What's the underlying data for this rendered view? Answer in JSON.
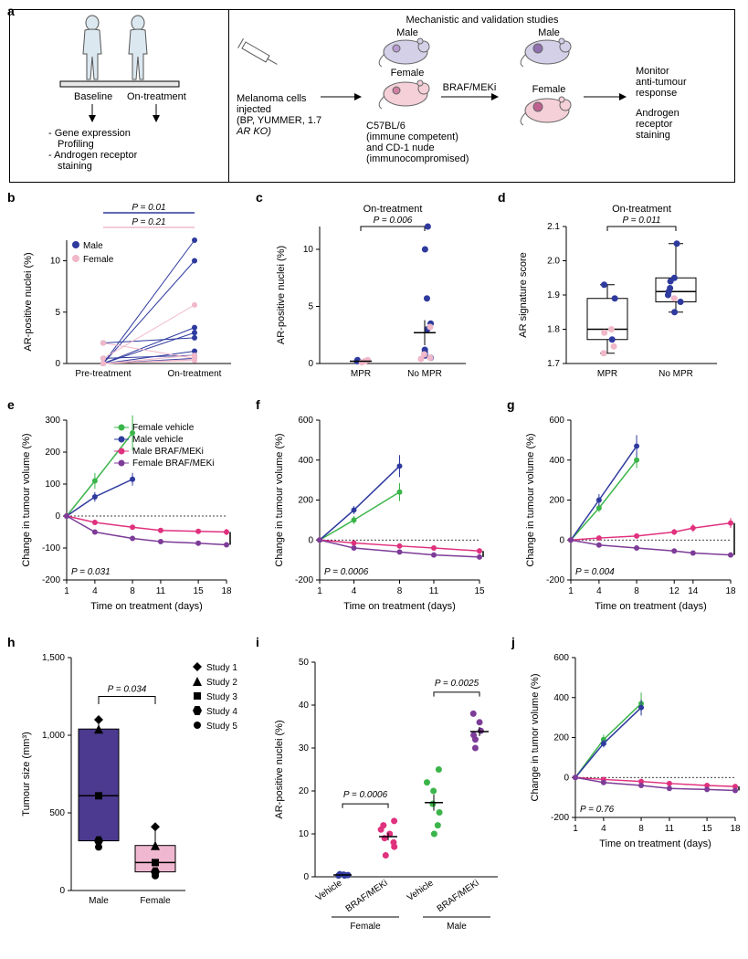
{
  "panel_a": {
    "left": {
      "baseline": "Baseline",
      "ontreatment": "On-treatment",
      "bullets": "- Gene expression\n  Profiling\n- Androgen receptor\n  staining"
    },
    "right": {
      "title": "Mechanistic and validation studies",
      "male": "Male",
      "female": "Female",
      "inject": "Melanoma cells\ninjected\n(BP, YUMMER, 1.7\nAR KO)",
      "strains": "C57BL/6\n(immune competent)\nand CD-1 nude\n(immunocompromised)",
      "treat": "BRAF/MEKi",
      "monitor": "Monitor\nanti-tumour\nresponse\n\nAndrogen\nreceptor\nstaining"
    }
  },
  "colors": {
    "male": "#2e3a9e",
    "female": "#f0b8c8",
    "green": "#3bb54a",
    "magenta": "#e0317e",
    "purple": "#7d3c98",
    "purple_box": "#4b3a8f",
    "pink_box": "#f0b8d0"
  },
  "b": {
    "title": "",
    "ylabel": "AR-positive nuclei (%)",
    "xticks": [
      "Pre-treatment",
      "On-treatment"
    ],
    "ylim": [
      0,
      12
    ],
    "ystep": 5,
    "p_all": "P = 0.01",
    "p_male": "P = 0.21",
    "legend": [
      "Male",
      "Female"
    ],
    "male_lines": [
      [
        0,
        12
      ],
      [
        0,
        10
      ],
      [
        0,
        3.5
      ],
      [
        0,
        3
      ],
      [
        2,
        2.5
      ],
      [
        0,
        0.5
      ],
      [
        0.5,
        0.8
      ],
      [
        0,
        1.2
      ]
    ],
    "female_lines": [
      [
        0.5,
        5.7
      ],
      [
        0,
        0.8
      ],
      [
        2,
        0.5
      ],
      [
        0,
        0.3
      ],
      [
        0,
        0.4
      ]
    ]
  },
  "c": {
    "title": "On-treatment",
    "ylabel": "AR-positive nuclei (%)",
    "xticks": [
      "MPR",
      "No MPR"
    ],
    "ylim": [
      0,
      12
    ],
    "ystep": 5,
    "pval": "P = 0.006",
    "mpr": {
      "male": [
        0.2,
        0.3
      ],
      "female": [
        0.1,
        0.2,
        0.3
      ]
    },
    "no_mpr": {
      "male": [
        12,
        10,
        5.7,
        3.5,
        3,
        1,
        0.7,
        0.5,
        1.2
      ],
      "female": [
        0.5,
        0.8,
        0.4,
        3.2
      ]
    }
  },
  "d": {
    "title": "On-treatment",
    "ylabel": "AR signature score",
    "xticks": [
      "MPR",
      "No MPR"
    ],
    "ylim": [
      1.7,
      2.1
    ],
    "ystep": 0.1,
    "pval": "P = 0.011",
    "mpr_box": {
      "q1": 1.77,
      "med": 1.8,
      "q3": 1.89,
      "lo": 1.73,
      "hi": 1.93
    },
    "no_mpr_box": {
      "q1": 1.88,
      "med": 1.91,
      "q3": 1.95,
      "lo": 1.85,
      "hi": 2.05
    },
    "mpr_pts": {
      "male": [
        1.93,
        1.89,
        1.77
      ],
      "female": [
        1.8,
        1.79,
        1.75,
        1.73
      ]
    },
    "no_mpr_pts": {
      "male": [
        2.05,
        1.95,
        1.94,
        1.92,
        1.91,
        1.9,
        1.88,
        1.85
      ],
      "female": [
        1.89
      ]
    }
  },
  "growth_legend": [
    "Female vehicle",
    "Male vehicle",
    "Male BRAF/MEKi",
    "Female BRAF/MEKi"
  ],
  "growth_colors": [
    "#3bb54a",
    "#2e3a9e",
    "#e0317e",
    "#7d3c98"
  ],
  "e": {
    "ylabel": "Change in tumour volume (%)",
    "xlabel": "Time on treatment (days)",
    "xticks": [
      1,
      4,
      8,
      11,
      15,
      18
    ],
    "ylim": [
      -200,
      300
    ],
    "ystep": 100,
    "pval": "P = 0.031",
    "series": {
      "green": {
        "x": [
          1,
          4,
          8
        ],
        "y": [
          0,
          110,
          260
        ],
        "err": [
          0,
          25,
          55
        ]
      },
      "blue": {
        "x": [
          1,
          4,
          8
        ],
        "y": [
          0,
          60,
          115
        ],
        "err": [
          0,
          15,
          20
        ]
      },
      "magenta": {
        "x": [
          1,
          4,
          8,
          11,
          15,
          18
        ],
        "y": [
          0,
          -20,
          -35,
          -45,
          -48,
          -50
        ],
        "err": [
          0,
          8,
          8,
          8,
          8,
          10
        ]
      },
      "purple": {
        "x": [
          1,
          4,
          8,
          11,
          15,
          18
        ],
        "y": [
          0,
          -50,
          -70,
          -80,
          -85,
          -90
        ],
        "err": [
          0,
          5,
          5,
          5,
          5,
          5
        ]
      }
    }
  },
  "f": {
    "ylabel": "Change in tumour volume (%)",
    "xlabel": "Time on treatment (days)",
    "xticks": [
      1,
      4,
      8,
      11,
      15
    ],
    "ylim": [
      -200,
      600
    ],
    "ystep": 200,
    "pval": "P = 0.0006",
    "series": {
      "green": {
        "x": [
          1,
          4,
          8
        ],
        "y": [
          0,
          100,
          240
        ],
        "err": [
          0,
          20,
          45
        ]
      },
      "blue": {
        "x": [
          1,
          4,
          8
        ],
        "y": [
          0,
          150,
          370
        ],
        "err": [
          0,
          20,
          55
        ]
      },
      "magenta": {
        "x": [
          1,
          4,
          8,
          11,
          15
        ],
        "y": [
          0,
          -15,
          -30,
          -40,
          -55
        ],
        "err": [
          0,
          10,
          10,
          10,
          15
        ]
      },
      "purple": {
        "x": [
          1,
          4,
          8,
          11,
          15
        ],
        "y": [
          0,
          -40,
          -60,
          -75,
          -85
        ],
        "err": [
          0,
          5,
          5,
          5,
          5
        ]
      }
    }
  },
  "g": {
    "ylabel": "Change in tumour volume (%)",
    "xlabel": "Time on treatment (days)",
    "xticks": [
      1,
      4,
      8,
      12,
      14,
      18
    ],
    "ylim": [
      -200,
      600
    ],
    "ystep": 200,
    "pval": "P = 0.004",
    "series": {
      "green": {
        "x": [
          1,
          4,
          8
        ],
        "y": [
          0,
          160,
          400
        ],
        "err": [
          0,
          20,
          40
        ]
      },
      "blue": {
        "x": [
          1,
          4,
          8
        ],
        "y": [
          0,
          200,
          470
        ],
        "err": [
          0,
          30,
          55
        ]
      },
      "magenta": {
        "x": [
          1,
          4,
          8,
          12,
          14,
          18
        ],
        "y": [
          0,
          10,
          20,
          40,
          60,
          85
        ],
        "err": [
          0,
          10,
          12,
          15,
          20,
          25
        ]
      },
      "purple": {
        "x": [
          1,
          4,
          8,
          12,
          14,
          18
        ],
        "y": [
          0,
          -25,
          -40,
          -55,
          -65,
          -75
        ],
        "err": [
          0,
          5,
          5,
          5,
          5,
          5
        ]
      }
    }
  },
  "h": {
    "ylabel": "Tumour size (mm³)",
    "xticks": [
      "Male",
      "Female"
    ],
    "ylim": [
      0,
      1500
    ],
    "ystep": 500,
    "pval": "P = 0.034",
    "legend": [
      "Study 1",
      "Study 2",
      "Study 3",
      "Study 4",
      "Study 5"
    ],
    "markers": [
      "diamond",
      "triangle",
      "square",
      "hex",
      "circle"
    ],
    "male_box": {
      "q1": 320,
      "med": 610,
      "q3": 1040,
      "lo": 280,
      "hi": 1100
    },
    "female_box": {
      "q1": 120,
      "med": 180,
      "q3": 290,
      "lo": 95,
      "hi": 410
    },
    "male_pts": [
      1100,
      1040,
      610,
      320,
      280
    ],
    "female_pts": [
      410,
      290,
      180,
      120,
      95
    ]
  },
  "i": {
    "ylabel": "AR-positive nuclei (%)",
    "xticks": [
      "Vehicle",
      "BRAF/MEKi",
      "Vehicle",
      "BRAF/MEKi"
    ],
    "groups": [
      "Female",
      "Male"
    ],
    "ylim": [
      0,
      50
    ],
    "ystep": 10,
    "p_female": "P = 0.0006",
    "p_male": "P = 0.0025",
    "colors": [
      "#2e3a9e",
      "#e0317e",
      "#3bb54a",
      "#7d3c98"
    ],
    "data": [
      [
        0.3,
        0.5,
        0.4,
        0.6,
        0.3
      ],
      [
        5,
        7,
        8,
        9,
        10,
        11,
        12,
        13
      ],
      [
        10,
        12,
        15,
        17,
        20,
        22,
        25
      ],
      [
        30,
        32,
        33,
        34,
        36,
        38
      ]
    ]
  },
  "j": {
    "ylabel": "Change in tumor volume (%)",
    "xlabel": "Time on treatment (days)",
    "xticks": [
      1,
      4,
      8,
      11,
      15,
      18
    ],
    "ylim": [
      -200,
      600
    ],
    "ystep": 200,
    "pval": "P = 0.76",
    "series": {
      "green": {
        "x": [
          1,
          4,
          8
        ],
        "y": [
          0,
          190,
          370
        ],
        "err": [
          0,
          25,
          55
        ]
      },
      "blue": {
        "x": [
          1,
          4,
          8
        ],
        "y": [
          0,
          170,
          350
        ],
        "err": [
          0,
          20,
          40
        ]
      },
      "magenta": {
        "x": [
          1,
          4,
          8,
          11,
          15,
          18
        ],
        "y": [
          0,
          -10,
          -20,
          -30,
          -40,
          -45
        ],
        "err": [
          0,
          8,
          8,
          8,
          8,
          10
        ]
      },
      "purple": {
        "x": [
          1,
          4,
          8,
          11,
          15,
          18
        ],
        "y": [
          0,
          -25,
          -40,
          -55,
          -60,
          -65
        ],
        "err": [
          0,
          5,
          5,
          5,
          5,
          5
        ]
      }
    }
  }
}
